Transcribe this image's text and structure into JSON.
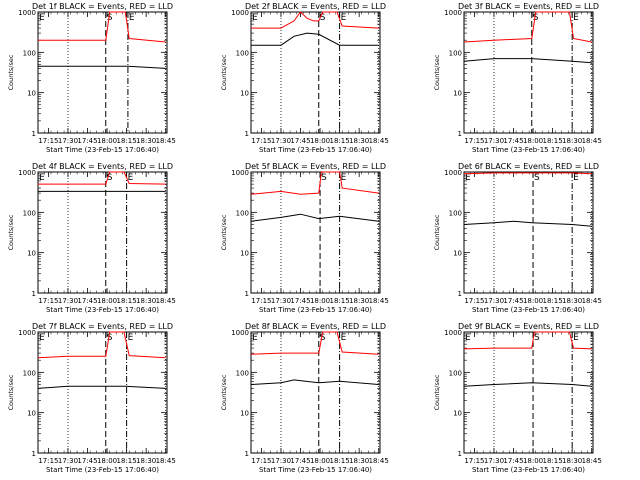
{
  "chart_data": [
    {
      "type": "line",
      "title": "Det 1f BLACK = Events, RED = LLD",
      "xlabel": "Start Time (23-Feb-15 17:06:40)",
      "ylabel": "Counts/sec",
      "y_scale": "log",
      "ylim": [
        1,
        1000
      ],
      "x_ticks": [
        "17:15",
        "17:30",
        "17:45",
        "18:00",
        "18:15",
        "18:30",
        "18:45"
      ],
      "y_ticks": [
        "1",
        "10",
        "100",
        "1000"
      ],
      "markers": [
        {
          "label": "E",
          "time": "17:07"
        },
        {
          "label": "S",
          "time": "17:59"
        },
        {
          "label": "E",
          "time": "18:16"
        }
      ],
      "series": [
        {
          "name": "LLD",
          "color": "#ff0000",
          "x": [
            "17:07",
            "17:30",
            "17:59",
            "18:02",
            "18:14",
            "18:17",
            "18:45"
          ],
          "values": [
            200,
            200,
            200,
            1000,
            1000,
            220,
            180
          ]
        },
        {
          "name": "Events",
          "color": "#000000",
          "x": [
            "17:07",
            "17:30",
            "17:59",
            "18:16",
            "18:45"
          ],
          "values": [
            45,
            45,
            45,
            45,
            40
          ]
        }
      ]
    },
    {
      "type": "line",
      "title": "Det 2f BLACK = Events, RED = LLD",
      "xlabel": "Start Time (23-Feb-15 17:06:40)",
      "ylabel": "Counts/sec",
      "y_scale": "log",
      "ylim": [
        1,
        1000
      ],
      "x_ticks": [
        "17:15",
        "17:30",
        "17:45",
        "18:00",
        "18:15",
        "18:30",
        "18:45"
      ],
      "y_ticks": [
        "1",
        "10",
        "100",
        "1000"
      ],
      "markers": [
        {
          "label": "E",
          "time": "17:07"
        },
        {
          "label": "S",
          "time": "17:59"
        },
        {
          "label": "E",
          "time": "18:15"
        }
      ],
      "series": [
        {
          "name": "LLD",
          "color": "#ff0000",
          "x": [
            "17:07",
            "17:30",
            "17:40",
            "17:45",
            "17:50",
            "17:55",
            "17:59",
            "18:02",
            "18:13",
            "18:17",
            "18:45"
          ],
          "values": [
            400,
            400,
            600,
            1000,
            700,
            600,
            600,
            1000,
            1000,
            450,
            400
          ]
        },
        {
          "name": "Events",
          "color": "#000000",
          "x": [
            "17:07",
            "17:30",
            "17:40",
            "17:50",
            "17:59",
            "18:15",
            "18:45"
          ],
          "values": [
            150,
            150,
            250,
            300,
            280,
            150,
            150
          ]
        }
      ]
    },
    {
      "type": "line",
      "title": "Det 3f BLACK = Events, RED = LLD",
      "xlabel": "Start Time (23-Feb-15 17:06:40)",
      "ylabel": "Counts/sec",
      "y_scale": "log",
      "ylim": [
        1,
        1000
      ],
      "x_ticks": [
        "17:15",
        "17:30",
        "17:45",
        "18:00",
        "18:15",
        "18:30",
        "18:45"
      ],
      "y_ticks": [
        "1",
        "10",
        "100",
        "1000"
      ],
      "markers": [
        {
          "label": "S",
          "time": "17:59"
        },
        {
          "label": "E",
          "time": "18:30"
        }
      ],
      "series": [
        {
          "name": "LLD",
          "color": "#ff0000",
          "x": [
            "17:07",
            "17:30",
            "17:59",
            "18:02",
            "18:28",
            "18:31",
            "18:45"
          ],
          "values": [
            180,
            200,
            220,
            1000,
            1000,
            220,
            180
          ]
        },
        {
          "name": "Events",
          "color": "#000000",
          "x": [
            "17:07",
            "17:30",
            "17:59",
            "18:30",
            "18:45"
          ],
          "values": [
            60,
            70,
            70,
            60,
            55
          ]
        }
      ]
    },
    {
      "type": "line",
      "title": "Det 4f BLACK = Events, RED = LLD",
      "xlabel": "Start Time (23-Feb-15 17:06:40)",
      "ylabel": "Counts/sec",
      "y_scale": "log",
      "ylim": [
        1,
        1000
      ],
      "x_ticks": [
        "17:15",
        "17:30",
        "17:45",
        "18:00",
        "18:15",
        "18:30",
        "18:45"
      ],
      "y_ticks": [
        "1",
        "10",
        "100",
        "1000"
      ],
      "markers": [
        {
          "label": "E",
          "time": "17:07"
        },
        {
          "label": "S",
          "time": "17:59"
        },
        {
          "label": "E",
          "time": "18:15"
        }
      ],
      "series": [
        {
          "name": "LLD",
          "color": "#ff0000",
          "x": [
            "17:07",
            "17:59",
            "18:02",
            "18:13",
            "18:17",
            "18:45"
          ],
          "values": [
            500,
            500,
            1000,
            1000,
            520,
            500
          ]
        },
        {
          "name": "Events",
          "color": "#000000",
          "x": [
            "17:07",
            "17:59",
            "18:15",
            "18:45"
          ],
          "values": [
            330,
            330,
            330,
            330
          ]
        }
      ]
    },
    {
      "type": "line",
      "title": "Det 5f BLACK = Events, RED = LLD",
      "xlabel": "Start Time (23-Feb-15 17:06:40)",
      "ylabel": "Counts/sec",
      "y_scale": "log",
      "ylim": [
        1,
        1000
      ],
      "x_ticks": [
        "17:15",
        "17:30",
        "17:45",
        "18:00",
        "18:15",
        "18:30",
        "18:45"
      ],
      "y_ticks": [
        "1",
        "10",
        "100",
        "1000"
      ],
      "markers": [
        {
          "label": "S",
          "time": "18:00"
        },
        {
          "label": "E",
          "time": "18:15"
        }
      ],
      "series": [
        {
          "name": "LLD",
          "color": "#ff0000",
          "x": [
            "17:07",
            "17:30",
            "17:45",
            "17:59",
            "18:01",
            "18:15",
            "18:17",
            "18:45"
          ],
          "values": [
            280,
            330,
            280,
            300,
            1000,
            1000,
            400,
            300
          ]
        },
        {
          "name": "Events",
          "color": "#000000",
          "x": [
            "17:07",
            "17:30",
            "17:45",
            "17:59",
            "18:15",
            "18:45"
          ],
          "values": [
            60,
            75,
            90,
            70,
            80,
            60
          ]
        }
      ]
    },
    {
      "type": "line",
      "title": "Det 6f BLACK = Events, RED = LLD",
      "xlabel": "Start Time (23-Feb-15 17:06:40)",
      "ylabel": "Counts/sec",
      "y_scale": "log",
      "ylim": [
        1,
        1000
      ],
      "x_ticks": [
        "17:15",
        "17:30",
        "17:45",
        "18:00",
        "18:15",
        "18:30",
        "18:45"
      ],
      "y_ticks": [
        "1",
        "10",
        "100",
        "1000"
      ],
      "markers": [
        {
          "label": "E",
          "time": "17:07"
        },
        {
          "label": "S",
          "time": "18:00"
        },
        {
          "label": "E",
          "time": "18:30"
        }
      ],
      "series": [
        {
          "name": "LLD",
          "color": "#ff0000",
          "x": [
            "17:07",
            "17:30",
            "17:59",
            "18:30",
            "18:45"
          ],
          "values": [
            900,
            950,
            950,
            950,
            900
          ]
        },
        {
          "name": "Events",
          "color": "#000000",
          "x": [
            "17:07",
            "17:30",
            "17:45",
            "17:59",
            "18:30",
            "18:45"
          ],
          "values": [
            50,
            55,
            60,
            55,
            50,
            45
          ]
        }
      ]
    },
    {
      "type": "line",
      "title": "Det 7f BLACK = Events, RED = LLD",
      "xlabel": "Start Time (23-Feb-15 17:06:40)",
      "ylabel": "Counts/sec",
      "y_scale": "log",
      "ylim": [
        1,
        1000
      ],
      "x_ticks": [
        "17:15",
        "17:30",
        "17:45",
        "18:00",
        "18:15",
        "18:30",
        "18:45"
      ],
      "y_ticks": [
        "1",
        "10",
        "100",
        "1000"
      ],
      "markers": [
        {
          "label": "E",
          "time": "17:07"
        },
        {
          "label": "S",
          "time": "17:59"
        },
        {
          "label": "E",
          "time": "18:15"
        }
      ],
      "series": [
        {
          "name": "LLD",
          "color": "#ff0000",
          "x": [
            "17:07",
            "17:30",
            "17:59",
            "18:02",
            "18:13",
            "18:17",
            "18:45"
          ],
          "values": [
            230,
            250,
            250,
            1000,
            1000,
            260,
            230
          ]
        },
        {
          "name": "Events",
          "color": "#000000",
          "x": [
            "17:07",
            "17:30",
            "17:59",
            "18:15",
            "18:45"
          ],
          "values": [
            40,
            45,
            45,
            45,
            40
          ]
        }
      ]
    },
    {
      "type": "line",
      "title": "Det 8f BLACK = Events, RED = LLD",
      "xlabel": "Start Time (23-Feb-15 17:06:40)",
      "ylabel": "Counts/sec",
      "y_scale": "log",
      "ylim": [
        1,
        1000
      ],
      "x_ticks": [
        "17:15",
        "17:30",
        "17:45",
        "18:00",
        "18:15",
        "18:30",
        "18:45"
      ],
      "y_ticks": [
        "1",
        "10",
        "100",
        "1000"
      ],
      "markers": [
        {
          "label": "E",
          "time": "17:07"
        },
        {
          "label": "S",
          "time": "17:59"
        },
        {
          "label": "E",
          "time": "18:15"
        }
      ],
      "series": [
        {
          "name": "LLD",
          "color": "#ff0000",
          "x": [
            "17:07",
            "17:30",
            "17:59",
            "18:02",
            "18:13",
            "18:17",
            "18:45"
          ],
          "values": [
            280,
            300,
            300,
            1000,
            1000,
            320,
            280
          ]
        },
        {
          "name": "Events",
          "color": "#000000",
          "x": [
            "17:07",
            "17:30",
            "17:40",
            "17:59",
            "18:15",
            "18:45"
          ],
          "values": [
            50,
            55,
            65,
            55,
            60,
            50
          ]
        }
      ]
    },
    {
      "type": "line",
      "title": "Det 9f BLACK = Events, RED = LLD",
      "xlabel": "Start Time (23-Feb-15 17:06:40)",
      "ylabel": "Counts/sec",
      "y_scale": "log",
      "ylim": [
        1,
        1000
      ],
      "x_ticks": [
        "17:15",
        "17:30",
        "17:45",
        "18:00",
        "18:15",
        "18:30",
        "18:45"
      ],
      "y_ticks": [
        "1",
        "10",
        "100",
        "1000"
      ],
      "markers": [
        {
          "label": "E",
          "time": "17:07"
        },
        {
          "label": "S",
          "time": "18:00"
        },
        {
          "label": "E",
          "time": "18:30"
        }
      ],
      "series": [
        {
          "name": "LLD",
          "color": "#ff0000",
          "x": [
            "17:07",
            "17:30",
            "17:59",
            "18:01",
            "18:28",
            "18:31",
            "18:45"
          ],
          "values": [
            380,
            400,
            400,
            1000,
            1000,
            400,
            380
          ]
        },
        {
          "name": "Events",
          "color": "#000000",
          "x": [
            "17:07",
            "17:30",
            "17:59",
            "18:30",
            "18:45"
          ],
          "values": [
            45,
            50,
            55,
            50,
            45
          ]
        }
      ]
    }
  ]
}
